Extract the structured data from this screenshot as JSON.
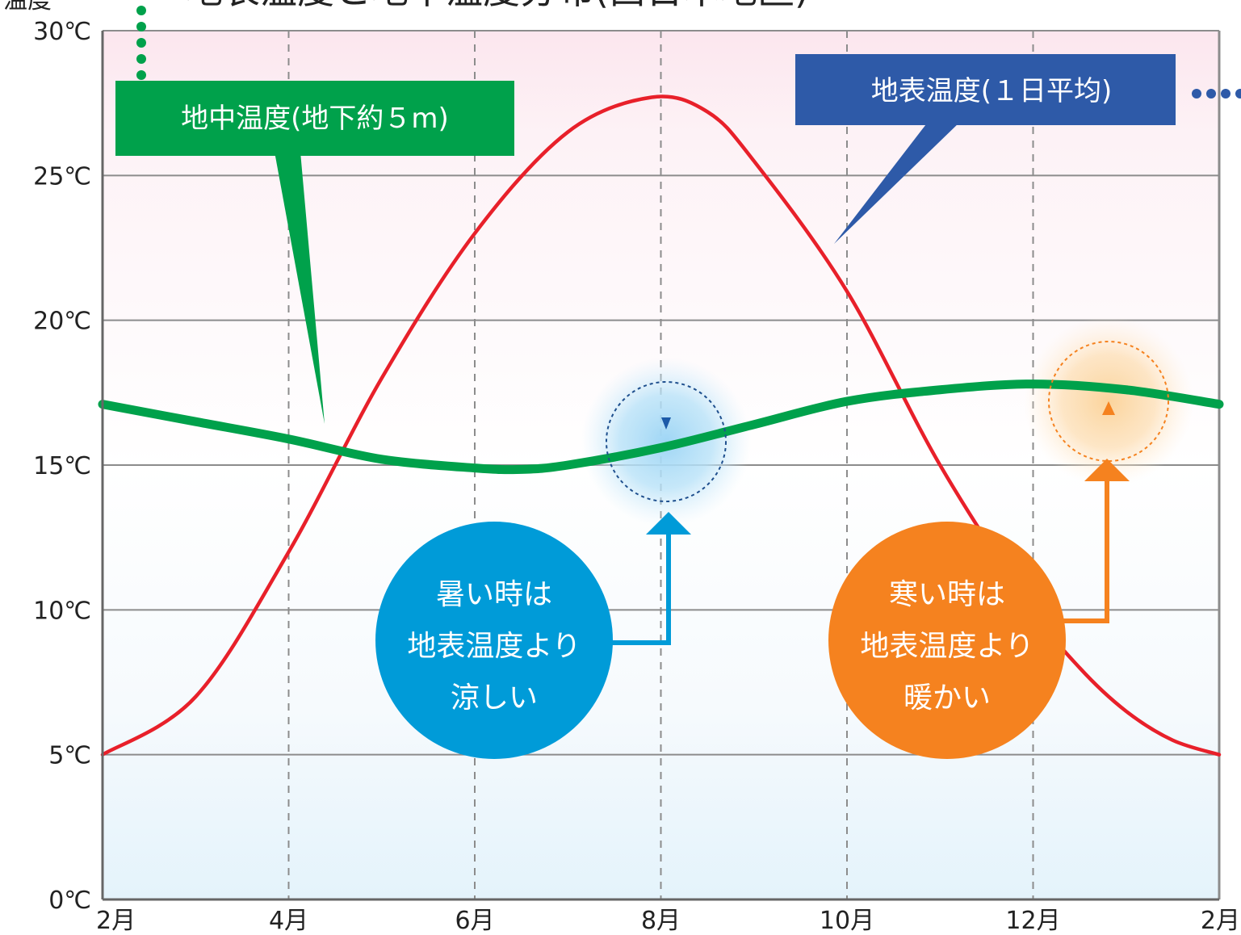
{
  "chart_data": {
    "type": "line",
    "title": "地表温度と地中温度分布(西日本地区)",
    "ylabel": "温度",
    "ylim": [
      0,
      30
    ],
    "x_ticks": [
      "2月",
      "4月",
      "6月",
      "8月",
      "10月",
      "12月",
      "2月"
    ],
    "y_ticks": [
      "0℃",
      "5℃",
      "10℃",
      "15℃",
      "20℃",
      "25℃",
      "30℃"
    ],
    "x_range": [
      2,
      14
    ],
    "grid": true,
    "series": [
      {
        "name": "地表温度(1日平均)",
        "color": "#e8202a",
        "x": [
          2,
          3,
          4,
          5,
          6,
          7,
          7.9,
          8.5,
          9,
          10,
          11,
          12,
          12.5,
          13,
          13.5,
          14
        ],
        "values": [
          5,
          7,
          12,
          18,
          23,
          26.5,
          27.7,
          27.2,
          25.5,
          21,
          15,
          10,
          8,
          6.5,
          5.5,
          5
        ]
      },
      {
        "name": "地中温度(地下約５m)",
        "color": "#00a14b",
        "x": [
          2,
          3,
          4,
          5,
          6,
          6.5,
          7,
          8,
          9,
          10,
          11,
          12,
          13,
          14
        ],
        "values": [
          17.1,
          16.5,
          15.9,
          15.2,
          14.9,
          14.85,
          15,
          15.6,
          16.4,
          17.2,
          17.6,
          17.8,
          17.6,
          17.1
        ]
      }
    ],
    "annotations": {
      "surface_label": "地表温度(１日平均)",
      "ground_label": "地中温度(地下約５m)",
      "summer_note": [
        "暑い時は",
        "地表温度より",
        "涼しい"
      ],
      "winter_note": [
        "寒い時は",
        "地表温度より",
        "暖かい"
      ]
    }
  },
  "colors": {
    "surface": "#e8202a",
    "ground": "#00a14b",
    "surface_callout": "#2e5aa8",
    "summer": "#009bd8",
    "winter": "#f5821f"
  }
}
